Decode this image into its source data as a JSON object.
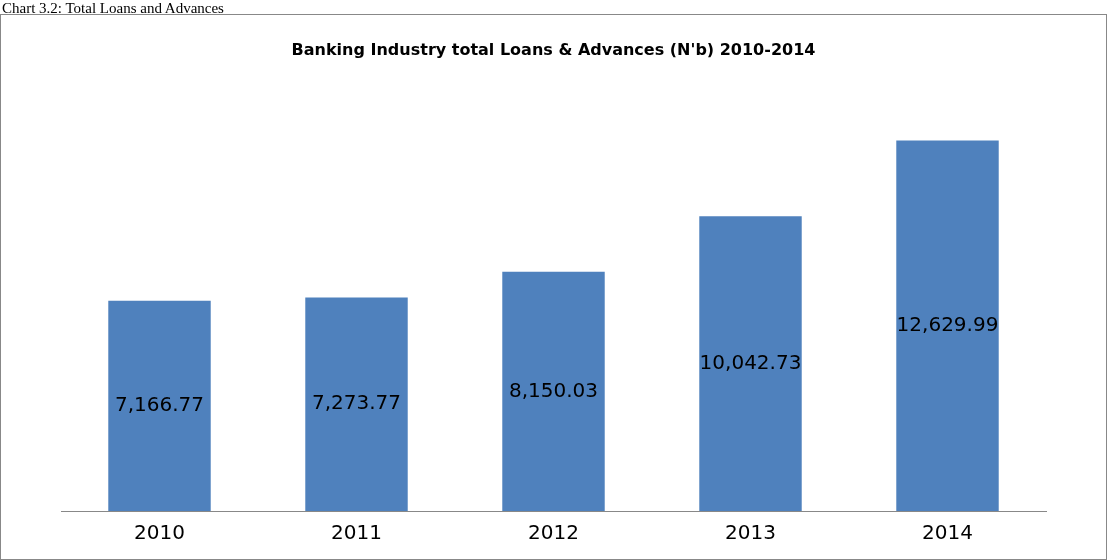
{
  "chart_data": {
    "type": "bar",
    "title": "Banking Industry total Loans & Advances (N'b) 2010-2014",
    "annotations": [
      "Chart 3.2: Total Loans and Advances"
    ],
    "categories": [
      "2010",
      "2011",
      "2012",
      "2013",
      "2014"
    ],
    "values": [
      7166.77,
      7273.77,
      8150.03,
      10042.73,
      12629.99
    ],
    "value_labels": [
      "7,166.77",
      "7,273.77",
      "8,150.03",
      "10,042.73",
      "12,629.99"
    ],
    "color": "#4f81bd"
  }
}
